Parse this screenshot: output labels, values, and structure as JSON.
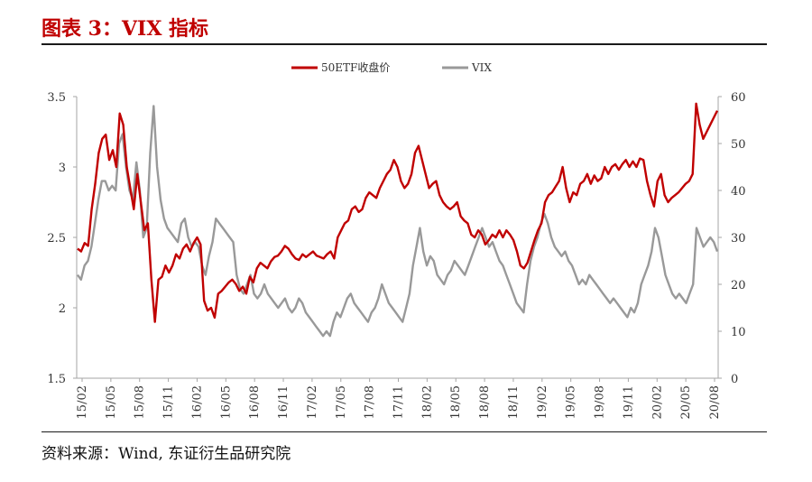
{
  "header": {
    "title": "图表 3：VIX 指标"
  },
  "footer": {
    "source": "资料来源：Wind, 东证衍生品研究院"
  },
  "colors": {
    "etf": "#c00000",
    "vix": "#999999",
    "axis": "#a6a6a6",
    "title": "#c00000"
  },
  "chart_data": {
    "type": "line",
    "legend": [
      "50ETF收盘价",
      "VIX"
    ],
    "legend_position": "top-center",
    "x_ticks": [
      "15/02",
      "15/05",
      "15/08",
      "15/11",
      "16/02",
      "16/05",
      "16/08",
      "16/11",
      "17/02",
      "17/05",
      "17/08",
      "17/11",
      "18/02",
      "18/05",
      "18/08",
      "18/11",
      "19/02",
      "19/05",
      "19/08",
      "19/11",
      "20/02",
      "20/05",
      "20/08"
    ],
    "y_left": {
      "range": [
        1.5,
        3.5
      ],
      "ticks": [
        "1.5",
        "2",
        "2.5",
        "3",
        "3.5"
      ]
    },
    "y_right": {
      "range": [
        0,
        60
      ],
      "ticks": [
        "0",
        "10",
        "20",
        "30",
        "40",
        "50",
        "60"
      ]
    },
    "series": [
      {
        "name": "50ETF收盘价",
        "axis": "left",
        "values": [
          2.42,
          2.4,
          2.46,
          2.44,
          2.7,
          2.88,
          3.1,
          3.2,
          3.23,
          3.05,
          3.12,
          3.0,
          3.38,
          3.3,
          3.0,
          2.85,
          2.7,
          2.95,
          2.75,
          2.55,
          2.6,
          2.2,
          1.9,
          2.2,
          2.22,
          2.3,
          2.25,
          2.3,
          2.38,
          2.35,
          2.42,
          2.45,
          2.4,
          2.46,
          2.5,
          2.45,
          2.05,
          1.98,
          2.0,
          1.93,
          2.1,
          2.12,
          2.15,
          2.18,
          2.2,
          2.17,
          2.12,
          2.15,
          2.1,
          2.22,
          2.18,
          2.28,
          2.32,
          2.3,
          2.28,
          2.33,
          2.36,
          2.37,
          2.4,
          2.44,
          2.42,
          2.38,
          2.35,
          2.34,
          2.38,
          2.36,
          2.38,
          2.4,
          2.37,
          2.36,
          2.35,
          2.38,
          2.4,
          2.35,
          2.5,
          2.55,
          2.6,
          2.62,
          2.7,
          2.72,
          2.68,
          2.7,
          2.78,
          2.82,
          2.8,
          2.78,
          2.85,
          2.9,
          2.95,
          2.98,
          3.05,
          3.0,
          2.9,
          2.85,
          2.88,
          2.95,
          3.1,
          3.15,
          3.05,
          2.95,
          2.85,
          2.88,
          2.9,
          2.8,
          2.75,
          2.72,
          2.7,
          2.72,
          2.75,
          2.65,
          2.62,
          2.6,
          2.52,
          2.5,
          2.55,
          2.52,
          2.45,
          2.48,
          2.52,
          2.5,
          2.55,
          2.5,
          2.55,
          2.52,
          2.48,
          2.4,
          2.3,
          2.28,
          2.32,
          2.4,
          2.48,
          2.55,
          2.6,
          2.75,
          2.8,
          2.82,
          2.86,
          2.9,
          3.0,
          2.85,
          2.75,
          2.82,
          2.8,
          2.88,
          2.9,
          2.95,
          2.88,
          2.94,
          2.9,
          2.92,
          3.0,
          2.95,
          3.0,
          3.02,
          2.98,
          3.02,
          3.05,
          3.0,
          3.04,
          3.0,
          3.06,
          3.05,
          2.9,
          2.8,
          2.72,
          2.9,
          2.95,
          2.8,
          2.75,
          2.78,
          2.8,
          2.82,
          2.85,
          2.88,
          2.9,
          2.95,
          3.45,
          3.3,
          3.2,
          3.25,
          3.3,
          3.35,
          3.4
        ]
      },
      {
        "name": "VIX",
        "axis": "right",
        "values": [
          22,
          21,
          24,
          25,
          28,
          33,
          38,
          42,
          42,
          40,
          41,
          40,
          50,
          52,
          45,
          40,
          38,
          46,
          40,
          30,
          32,
          48,
          58,
          45,
          38,
          34,
          32,
          31,
          30,
          29,
          33,
          34,
          30,
          28,
          29,
          28,
          24,
          22,
          26,
          29,
          34,
          33,
          32,
          31,
          30,
          29,
          22,
          19,
          18,
          20,
          22,
          18,
          17,
          18,
          20,
          18,
          17,
          16,
          15,
          16,
          17,
          15,
          14,
          15,
          17,
          16,
          14,
          13,
          12,
          11,
          10,
          9,
          10,
          9,
          12,
          14,
          13,
          15,
          17,
          18,
          16,
          15,
          14,
          13,
          12,
          14,
          15,
          17,
          20,
          18,
          16,
          15,
          14,
          13,
          12,
          15,
          18,
          24,
          28,
          32,
          27,
          24,
          26,
          25,
          22,
          21,
          20,
          22,
          23,
          25,
          24,
          23,
          22,
          24,
          26,
          28,
          30,
          32,
          30,
          28,
          29,
          27,
          25,
          24,
          22,
          20,
          18,
          16,
          15,
          14,
          20,
          25,
          28,
          30,
          33,
          35,
          33,
          30,
          28,
          27,
          26,
          27,
          25,
          24,
          22,
          20,
          21,
          20,
          22,
          21,
          20,
          19,
          18,
          17,
          16,
          17,
          16,
          15,
          14,
          13,
          15,
          14,
          16,
          20,
          22,
          24,
          27,
          32,
          30,
          26,
          22,
          20,
          18,
          17,
          18,
          17,
          16,
          18,
          20,
          32,
          30,
          28,
          29,
          30,
          29,
          27
        ]
      }
    ]
  }
}
